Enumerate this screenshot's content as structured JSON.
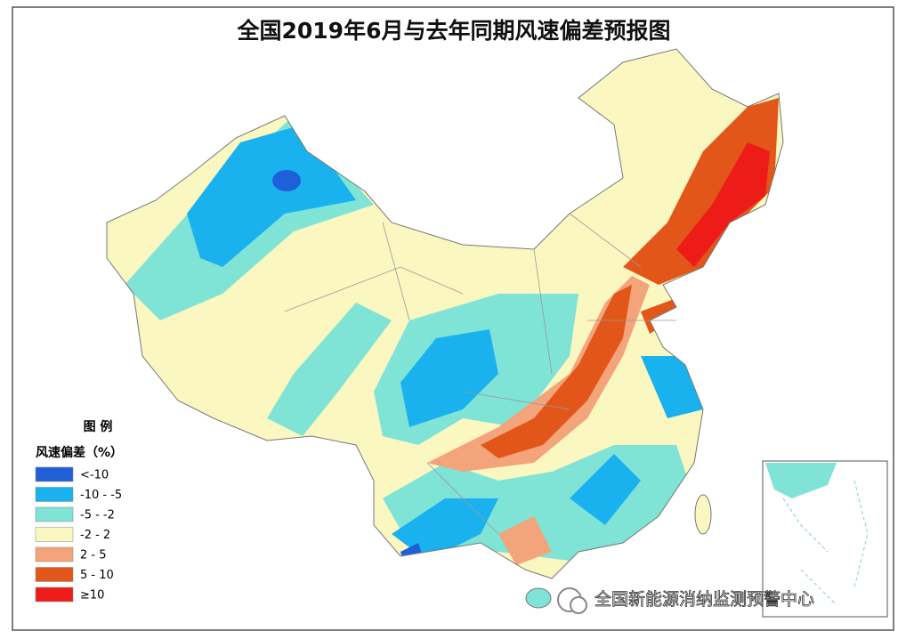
{
  "title": "全国2019年6月与去年同期风速偏差预报图",
  "legend": {
    "title": "图 例",
    "subtitle": "风速偏差（%）",
    "items": [
      {
        "label": "<-10",
        "color": "#1f5fd8"
      },
      {
        "label": "-10 - -5",
        "color": "#19b2ef"
      },
      {
        "label": "-5 - -2",
        "color": "#7fe3d6"
      },
      {
        "label": "-2 - 2",
        "color": "#fbf7c0"
      },
      {
        "label": "2 - 5",
        "color": "#f4a47a"
      },
      {
        "label": "5 - 10",
        "color": "#e2561a"
      },
      {
        "label": "≥10",
        "color": "#ee1c18"
      }
    ]
  },
  "watermark": "全国新能源消纳监测预警中心"
}
